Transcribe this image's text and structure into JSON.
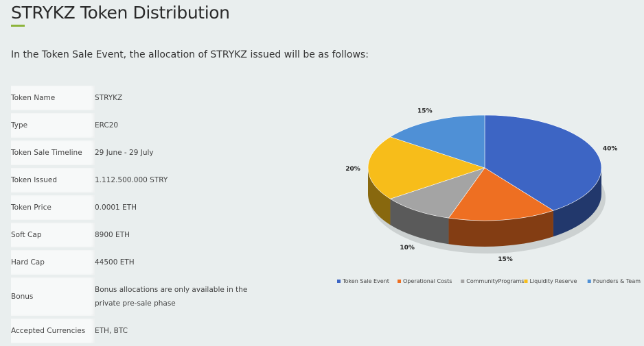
{
  "page": {
    "title": "STRYKZ Token Distribution",
    "intro": "In the Token Sale Event, the allocation of STRYKZ issued will be as follows:",
    "accent_color": "#8db43b"
  },
  "details": [
    {
      "key": "Token Name",
      "value": "STRYKZ"
    },
    {
      "key": "Type",
      "value": "ERC20"
    },
    {
      "key": "Token Sale Timeline",
      "value": "29 June - 29 July"
    },
    {
      "key": "Token Issued",
      "value": "1.112.500.000 STRY"
    },
    {
      "key": "Token Price",
      "value": "0.0001 ETH"
    },
    {
      "key": "Soft Cap",
      "value": "8900 ETH"
    },
    {
      "key": "Hard Cap",
      "value": "44500 ETH"
    },
    {
      "key": "Bonus",
      "value": "Bonus allocations are only available in the private pre-sale phase"
    },
    {
      "key": "Accepted Currencies",
      "value": "ETH, BTC"
    }
  ],
  "chart_data": {
    "type": "pie",
    "title": "",
    "categories": [
      "Token Sale Event",
      "Operational Costs",
      "CommunityPrograms",
      "Liquidity Reserve",
      "Founders & Team"
    ],
    "values": [
      40,
      15,
      10,
      20,
      15
    ],
    "labels": [
      "40%",
      "15%",
      "10%",
      "20%",
      "15%"
    ],
    "colors": [
      "#3d65c4",
      "#ee6f22",
      "#a4a4a4",
      "#f7bd1a",
      "#4f90d6"
    ],
    "legend_position": "bottom"
  }
}
